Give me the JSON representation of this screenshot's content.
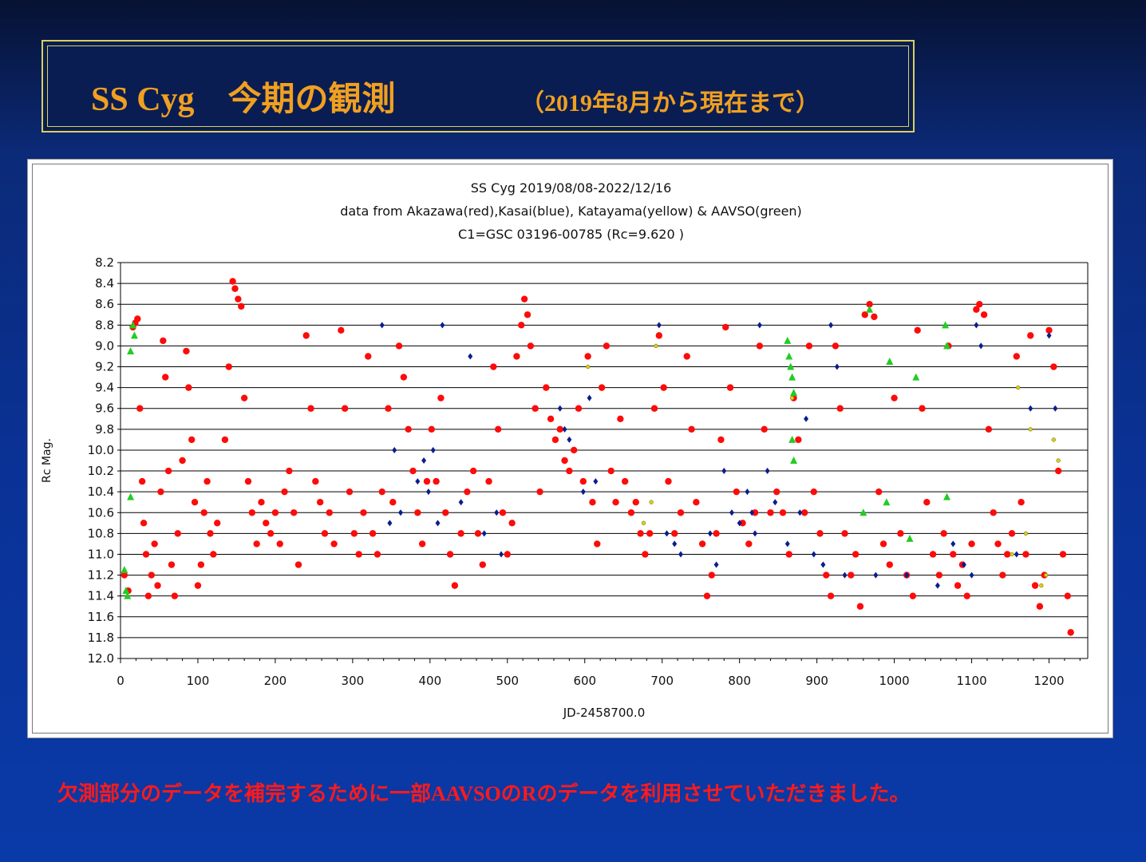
{
  "slide": {
    "title_main": "SS Cyg　今期の観測",
    "title_sub": "（2019年8月から現在まで）",
    "footer_note": "欠測部分のデータを補完するために一部AAVSOのRのデータを利用させていただきました。"
  },
  "chart_data": {
    "type": "scatter",
    "title_lines": [
      "SS Cyg 2019/08/08-2022/12/16",
      "data from Akazawa(red),Kasai(blue), Katayama(yellow) & AAVSO(green)",
      "C1=GSC 03196-00785 (Rc=9.620 )"
    ],
    "xlabel": "JD-2458700.0",
    "ylabel": "Rc Mag.",
    "xlim": [
      0,
      1250
    ],
    "ylim": [
      12.0,
      8.2
    ],
    "x_ticks": [
      0,
      100,
      200,
      300,
      400,
      500,
      600,
      700,
      800,
      900,
      1000,
      1100,
      1200
    ],
    "x_tick_labels": [
      "0",
      "100",
      "200",
      "300",
      "400",
      "500",
      "600",
      "700",
      "800",
      "900",
      "1000",
      "1100",
      "1200"
    ],
    "y_ticks": [
      8.2,
      8.4,
      8.6,
      8.8,
      9.0,
      9.2,
      9.4,
      9.6,
      9.8,
      10.0,
      10.2,
      10.4,
      10.6,
      10.8,
      11.0,
      11.2,
      11.4,
      11.6,
      11.8,
      12.0
    ],
    "y_tick_labels": [
      "8.2",
      "8.4",
      "8.6",
      "8.8",
      "9.0",
      "9.2",
      "9.4",
      "9.6",
      "9.8",
      "10.0",
      "10.2",
      "10.4",
      "10.6",
      "10.8",
      "11.0",
      "11.2",
      "11.4",
      "11.6",
      "11.8",
      "12.0"
    ],
    "grid": "horizontal",
    "colors": {
      "red": "#ff0a0a",
      "blue": "#0a1e8c",
      "yellow": "#d8d020",
      "green": "#22cc22"
    },
    "series": [
      {
        "name": "Akazawa",
        "color": "red",
        "marker": "circle",
        "points": [
          [
            5,
            11.2
          ],
          [
            10,
            11.35
          ],
          [
            16,
            8.82
          ],
          [
            19,
            8.78
          ],
          [
            22,
            8.74
          ],
          [
            25,
            9.6
          ],
          [
            28,
            10.3
          ],
          [
            30,
            10.7
          ],
          [
            33,
            11.0
          ],
          [
            36,
            11.4
          ],
          [
            40,
            11.2
          ],
          [
            44,
            10.9
          ],
          [
            48,
            11.3
          ],
          [
            52,
            10.4
          ],
          [
            55,
            8.95
          ],
          [
            58,
            9.3
          ],
          [
            62,
            10.2
          ],
          [
            66,
            11.1
          ],
          [
            70,
            11.4
          ],
          [
            74,
            10.8
          ],
          [
            80,
            10.1
          ],
          [
            85,
            9.05
          ],
          [
            88,
            9.4
          ],
          [
            92,
            9.9
          ],
          [
            96,
            10.5
          ],
          [
            100,
            11.3
          ],
          [
            104,
            11.1
          ],
          [
            108,
            10.6
          ],
          [
            112,
            10.3
          ],
          [
            116,
            10.8
          ],
          [
            120,
            11.0
          ],
          [
            125,
            10.7
          ],
          [
            135,
            9.9
          ],
          [
            140,
            9.2
          ],
          [
            145,
            8.38
          ],
          [
            148,
            8.45
          ],
          [
            152,
            8.55
          ],
          [
            156,
            8.62
          ],
          [
            160,
            9.5
          ],
          [
            165,
            10.3
          ],
          [
            170,
            10.6
          ],
          [
            176,
            10.9
          ],
          [
            182,
            10.5
          ],
          [
            188,
            10.7
          ],
          [
            194,
            10.8
          ],
          [
            200,
            10.6
          ],
          [
            206,
            10.9
          ],
          [
            212,
            10.4
          ],
          [
            218,
            10.2
          ],
          [
            224,
            10.6
          ],
          [
            230,
            11.1
          ],
          [
            240,
            8.9
          ],
          [
            246,
            9.6
          ],
          [
            252,
            10.3
          ],
          [
            258,
            10.5
          ],
          [
            264,
            10.8
          ],
          [
            270,
            10.6
          ],
          [
            276,
            10.9
          ],
          [
            285,
            8.85
          ],
          [
            290,
            9.6
          ],
          [
            296,
            10.4
          ],
          [
            302,
            10.8
          ],
          [
            308,
            11.0
          ],
          [
            314,
            10.6
          ],
          [
            320,
            9.1
          ],
          [
            326,
            10.8
          ],
          [
            332,
            11.0
          ],
          [
            338,
            10.4
          ],
          [
            346,
            9.6
          ],
          [
            352,
            10.5
          ],
          [
            360,
            9.0
          ],
          [
            366,
            9.3
          ],
          [
            372,
            9.8
          ],
          [
            378,
            10.2
          ],
          [
            384,
            10.6
          ],
          [
            390,
            10.9
          ],
          [
            396,
            10.3
          ],
          [
            402,
            9.8
          ],
          [
            408,
            10.3
          ],
          [
            414,
            9.5
          ],
          [
            420,
            10.6
          ],
          [
            426,
            11.0
          ],
          [
            432,
            11.3
          ],
          [
            440,
            10.8
          ],
          [
            448,
            10.4
          ],
          [
            456,
            10.2
          ],
          [
            462,
            10.8
          ],
          [
            468,
            11.1
          ],
          [
            476,
            10.3
          ],
          [
            482,
            9.2
          ],
          [
            488,
            9.8
          ],
          [
            494,
            10.6
          ],
          [
            500,
            11.0
          ],
          [
            506,
            10.7
          ],
          [
            512,
            9.1
          ],
          [
            518,
            8.8
          ],
          [
            522,
            8.55
          ],
          [
            526,
            8.7
          ],
          [
            530,
            9.0
          ],
          [
            536,
            9.6
          ],
          [
            542,
            10.4
          ],
          [
            550,
            9.4
          ],
          [
            556,
            9.7
          ],
          [
            562,
            9.9
          ],
          [
            568,
            9.8
          ],
          [
            574,
            10.1
          ],
          [
            580,
            10.2
          ],
          [
            586,
            10.0
          ],
          [
            592,
            9.6
          ],
          [
            598,
            10.3
          ],
          [
            604,
            9.1
          ],
          [
            610,
            10.5
          ],
          [
            616,
            10.9
          ],
          [
            622,
            9.4
          ],
          [
            628,
            9.0
          ],
          [
            634,
            10.2
          ],
          [
            640,
            10.5
          ],
          [
            646,
            9.7
          ],
          [
            652,
            10.3
          ],
          [
            660,
            10.6
          ],
          [
            666,
            10.5
          ],
          [
            672,
            10.8
          ],
          [
            678,
            11.0
          ],
          [
            684,
            10.8
          ],
          [
            690,
            9.6
          ],
          [
            696,
            8.9
          ],
          [
            702,
            9.4
          ],
          [
            708,
            10.3
          ],
          [
            716,
            10.8
          ],
          [
            724,
            10.6
          ],
          [
            732,
            9.1
          ],
          [
            738,
            9.8
          ],
          [
            744,
            10.5
          ],
          [
            752,
            10.9
          ],
          [
            758,
            11.4
          ],
          [
            764,
            11.2
          ],
          [
            770,
            10.8
          ],
          [
            776,
            9.9
          ],
          [
            782,
            8.82
          ],
          [
            788,
            9.4
          ],
          [
            796,
            10.4
          ],
          [
            804,
            10.7
          ],
          [
            812,
            10.9
          ],
          [
            820,
            10.6
          ],
          [
            826,
            9.0
          ],
          [
            832,
            9.8
          ],
          [
            840,
            10.6
          ],
          [
            848,
            10.4
          ],
          [
            856,
            10.6
          ],
          [
            864,
            11.0
          ],
          [
            870,
            9.5
          ],
          [
            876,
            9.9
          ],
          [
            884,
            10.6
          ],
          [
            890,
            9.0
          ],
          [
            896,
            10.4
          ],
          [
            904,
            10.8
          ],
          [
            912,
            11.2
          ],
          [
            918,
            11.4
          ],
          [
            924,
            9.0
          ],
          [
            930,
            9.6
          ],
          [
            936,
            10.8
          ],
          [
            944,
            11.2
          ],
          [
            950,
            11.0
          ],
          [
            956,
            11.5
          ],
          [
            962,
            8.7
          ],
          [
            968,
            8.6
          ],
          [
            974,
            8.72
          ],
          [
            980,
            10.4
          ],
          [
            986,
            10.9
          ],
          [
            994,
            11.1
          ],
          [
            1000,
            9.5
          ],
          [
            1008,
            10.8
          ],
          [
            1016,
            11.2
          ],
          [
            1024,
            11.4
          ],
          [
            1030,
            8.85
          ],
          [
            1036,
            9.6
          ],
          [
            1042,
            10.5
          ],
          [
            1050,
            11.0
          ],
          [
            1058,
            11.2
          ],
          [
            1064,
            10.8
          ],
          [
            1070,
            9.0
          ],
          [
            1076,
            11.0
          ],
          [
            1082,
            11.3
          ],
          [
            1088,
            11.1
          ],
          [
            1094,
            11.4
          ],
          [
            1100,
            10.9
          ],
          [
            1106,
            8.65
          ],
          [
            1110,
            8.6
          ],
          [
            1116,
            8.7
          ],
          [
            1122,
            9.8
          ],
          [
            1128,
            10.6
          ],
          [
            1134,
            10.9
          ],
          [
            1140,
            11.2
          ],
          [
            1146,
            11.0
          ],
          [
            1152,
            10.8
          ],
          [
            1158,
            9.1
          ],
          [
            1164,
            10.5
          ],
          [
            1170,
            11.0
          ],
          [
            1176,
            8.9
          ],
          [
            1182,
            11.3
          ],
          [
            1188,
            11.5
          ],
          [
            1194,
            11.2
          ],
          [
            1200,
            8.85
          ],
          [
            1206,
            9.2
          ],
          [
            1212,
            10.2
          ],
          [
            1218,
            11.0
          ],
          [
            1224,
            11.4
          ],
          [
            1228,
            11.75
          ]
        ]
      },
      {
        "name": "Kasai",
        "color": "blue",
        "marker": "diamond",
        "points": [
          [
            338,
            8.8
          ],
          [
            348,
            10.7
          ],
          [
            354,
            10.0
          ],
          [
            362,
            10.6
          ],
          [
            384,
            10.3
          ],
          [
            392,
            10.1
          ],
          [
            398,
            10.4
          ],
          [
            404,
            10.0
          ],
          [
            410,
            10.7
          ],
          [
            416,
            8.8
          ],
          [
            440,
            10.5
          ],
          [
            452,
            9.1
          ],
          [
            470,
            10.8
          ],
          [
            486,
            10.6
          ],
          [
            492,
            11.0
          ],
          [
            568,
            9.6
          ],
          [
            574,
            9.8
          ],
          [
            580,
            9.9
          ],
          [
            598,
            10.4
          ],
          [
            606,
            9.5
          ],
          [
            614,
            10.3
          ],
          [
            696,
            8.8
          ],
          [
            706,
            10.8
          ],
          [
            716,
            10.9
          ],
          [
            724,
            11.0
          ],
          [
            762,
            10.8
          ],
          [
            770,
            11.1
          ],
          [
            780,
            10.2
          ],
          [
            790,
            10.6
          ],
          [
            800,
            10.7
          ],
          [
            810,
            10.4
          ],
          [
            816,
            10.6
          ],
          [
            820,
            10.8
          ],
          [
            826,
            8.8
          ],
          [
            836,
            10.2
          ],
          [
            846,
            10.5
          ],
          [
            862,
            10.9
          ],
          [
            878,
            10.6
          ],
          [
            886,
            9.7
          ],
          [
            896,
            11.0
          ],
          [
            908,
            11.1
          ],
          [
            918,
            8.8
          ],
          [
            926,
            9.2
          ],
          [
            936,
            11.2
          ],
          [
            976,
            11.2
          ],
          [
            1016,
            11.2
          ],
          [
            1056,
            11.3
          ],
          [
            1076,
            10.9
          ],
          [
            1090,
            11.1
          ],
          [
            1100,
            11.2
          ],
          [
            1106,
            8.8
          ],
          [
            1112,
            9.0
          ],
          [
            1158,
            11.0
          ],
          [
            1176,
            9.6
          ],
          [
            1200,
            8.9
          ],
          [
            1208,
            9.6
          ]
        ]
      },
      {
        "name": "Katayama",
        "color": "yellow",
        "marker": "dot",
        "points": [
          [
            604,
            9.2
          ],
          [
            676,
            10.7
          ],
          [
            686,
            10.5
          ],
          [
            692,
            9.0
          ],
          [
            868,
            9.5
          ],
          [
            1152,
            11.0
          ],
          [
            1160,
            9.4
          ],
          [
            1170,
            10.8
          ],
          [
            1176,
            9.8
          ],
          [
            1190,
            11.3
          ],
          [
            1196,
            11.2
          ],
          [
            1206,
            9.9
          ],
          [
            1212,
            10.1
          ]
        ]
      },
      {
        "name": "AAVSO",
        "color": "green",
        "marker": "triangle",
        "points": [
          [
            5,
            11.15
          ],
          [
            7,
            11.35
          ],
          [
            9,
            11.4
          ],
          [
            13,
            9.05
          ],
          [
            13,
            10.45
          ],
          [
            16,
            8.8
          ],
          [
            18,
            8.9
          ],
          [
            862,
            8.95
          ],
          [
            864,
            9.1
          ],
          [
            866,
            9.2
          ],
          [
            868,
            9.3
          ],
          [
            870,
            9.45
          ],
          [
            868,
            9.9
          ],
          [
            870,
            10.1
          ],
          [
            960,
            10.6
          ],
          [
            968,
            8.65
          ],
          [
            990,
            10.5
          ],
          [
            994,
            9.15
          ],
          [
            1020,
            10.85
          ],
          [
            1028,
            9.3
          ],
          [
            1066,
            8.8
          ],
          [
            1068,
            9.0
          ],
          [
            1068,
            10.45
          ]
        ]
      }
    ]
  }
}
